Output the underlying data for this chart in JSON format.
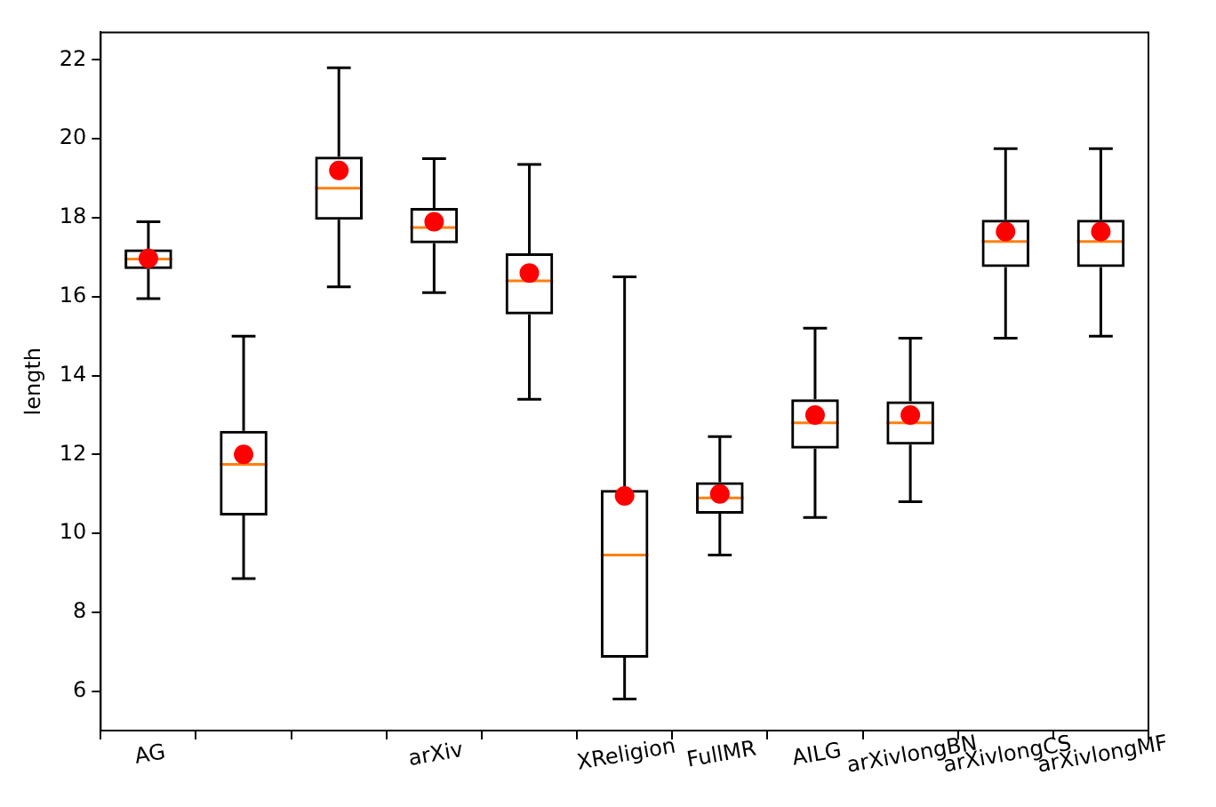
{
  "chart_data": {
    "type": "box",
    "ylabel": "length",
    "categories": [
      "AG",
      null,
      null,
      "arXiv",
      null,
      "XReligion",
      "FullMR",
      "AILG",
      "arXivlongBN",
      "arXivlongCS",
      "arXivlongMF"
    ],
    "series": [
      {
        "color": "#000000",
        "boxes": [
          {
            "low": 15.95,
            "q1": 16.7,
            "median": 16.95,
            "q3": 17.2,
            "high": 17.9,
            "mean": 16.97
          },
          {
            "low": 8.85,
            "q1": 10.45,
            "median": 11.75,
            "q3": 12.6,
            "high": 15.0,
            "mean": 12.0
          },
          {
            "low": 16.25,
            "q1": 17.95,
            "median": 18.75,
            "q3": 19.55,
            "high": 21.8,
            "mean": 19.2
          },
          {
            "low": 16.1,
            "q1": 17.35,
            "median": 17.75,
            "q3": 18.25,
            "high": 19.5,
            "mean": 17.9
          },
          {
            "low": 13.4,
            "q1": 15.55,
            "median": 16.4,
            "q3": 17.1,
            "high": 19.35,
            "mean": 16.6
          },
          {
            "low": 5.8,
            "q1": 6.85,
            "median": 9.45,
            "q3": 11.1,
            "high": 16.5,
            "mean": 10.95
          },
          {
            "low": 9.45,
            "q1": 10.5,
            "median": 10.9,
            "q3": 11.3,
            "high": 12.45,
            "mean": 11.0
          },
          {
            "low": 10.4,
            "q1": 12.15,
            "median": 12.8,
            "q3": 13.4,
            "high": 15.2,
            "mean": 13.0
          },
          {
            "low": 10.8,
            "q1": 12.25,
            "median": 12.8,
            "q3": 13.35,
            "high": 14.95,
            "mean": 13.0
          },
          {
            "low": 14.95,
            "q1": 16.75,
            "median": 17.4,
            "q3": 17.95,
            "high": 19.75,
            "mean": 17.65
          },
          {
            "low": 15.0,
            "q1": 16.75,
            "median": 17.4,
            "q3": 17.95,
            "high": 19.75,
            "mean": 17.65
          }
        ]
      }
    ],
    "ylim": [
      5,
      22.7
    ],
    "yticks": [
      6,
      8,
      10,
      12,
      14,
      16,
      18,
      20,
      22
    ],
    "grid": false,
    "legend": false
  }
}
